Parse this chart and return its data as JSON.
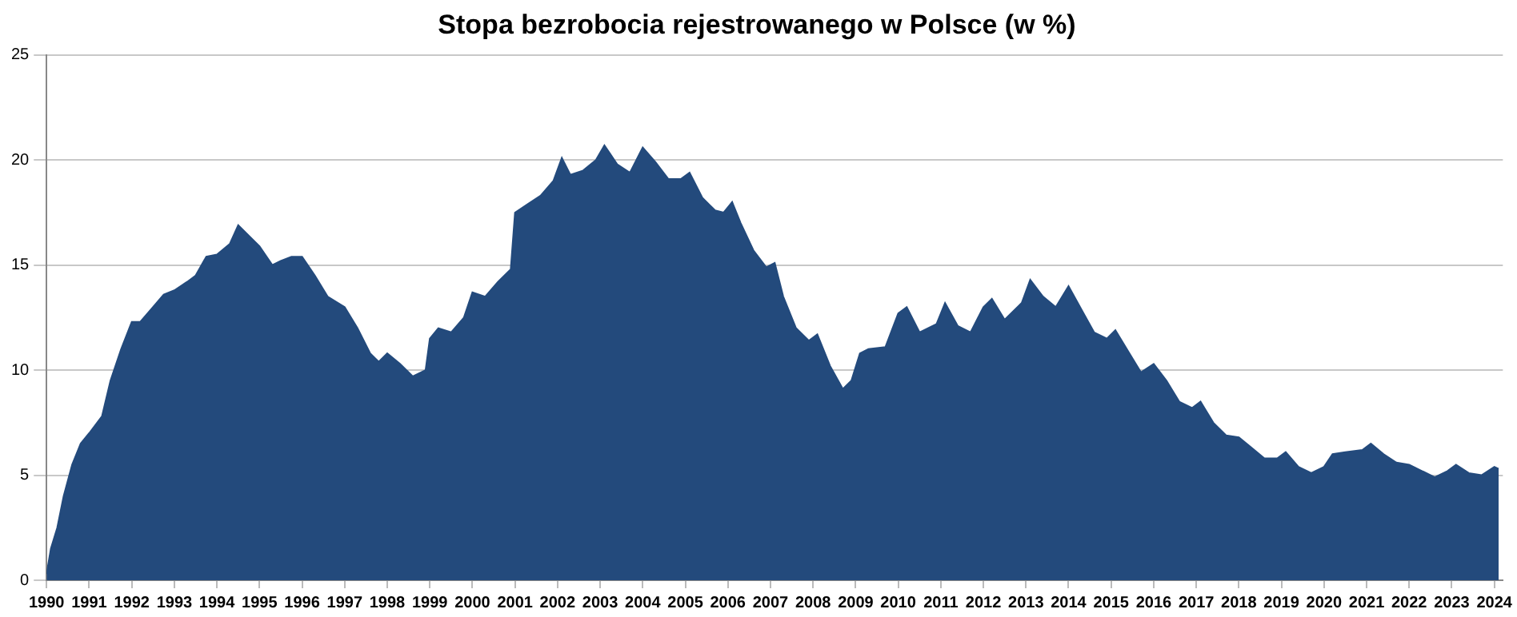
{
  "chart_data": {
    "type": "area",
    "title": "Stopa bezrobocia rejestrowanego w Polsce (w %)",
    "x": [
      1990.0,
      1990.1,
      1990.25,
      1990.4,
      1990.6,
      1990.8,
      1991.0,
      1991.3,
      1991.5,
      1991.75,
      1992.0,
      1992.2,
      1992.5,
      1992.75,
      1993.0,
      1993.3,
      1993.5,
      1993.75,
      1994.0,
      1994.3,
      1994.5,
      1994.75,
      1995.0,
      1995.3,
      1995.5,
      1995.75,
      1996.0,
      1996.3,
      1996.6,
      1997.0,
      1997.3,
      1997.6,
      1997.8,
      1998.0,
      1998.3,
      1998.6,
      1998.9,
      1999.0,
      1999.2,
      1999.5,
      1999.8,
      2000.0,
      2000.3,
      2000.6,
      2000.9,
      2001.0,
      2001.3,
      2001.6,
      2001.9,
      2002.1,
      2002.3,
      2002.6,
      2002.9,
      2003.1,
      2003.4,
      2003.7,
      2004.0,
      2004.3,
      2004.6,
      2004.9,
      2005.1,
      2005.4,
      2005.7,
      2005.9,
      2006.1,
      2006.3,
      2006.6,
      2006.9,
      2007.1,
      2007.3,
      2007.6,
      2007.9,
      2008.1,
      2008.4,
      2008.7,
      2008.9,
      2009.1,
      2009.3,
      2009.7,
      2010.0,
      2010.2,
      2010.5,
      2010.9,
      2011.1,
      2011.4,
      2011.7,
      2012.0,
      2012.2,
      2012.5,
      2012.9,
      2013.1,
      2013.4,
      2013.7,
      2014.0,
      2014.3,
      2014.6,
      2014.9,
      2015.1,
      2015.4,
      2015.7,
      2016.0,
      2016.3,
      2016.6,
      2016.9,
      2017.1,
      2017.4,
      2017.7,
      2018.0,
      2018.3,
      2018.6,
      2018.9,
      2019.1,
      2019.4,
      2019.7,
      2020.0,
      2020.2,
      2020.5,
      2020.9,
      2021.1,
      2021.4,
      2021.7,
      2022.0,
      2022.3,
      2022.6,
      2022.9,
      2023.1,
      2023.4,
      2023.7,
      2024.0,
      2024.1
    ],
    "series": [
      {
        "color": "#234a7c",
        "values": [
          0.3,
          1.5,
          2.5,
          4,
          5.5,
          6.5,
          7,
          7.8,
          9.5,
          11,
          12.3,
          12.3,
          13,
          13.6,
          13.8,
          14.2,
          14.5,
          15.4,
          15.5,
          16,
          16.9,
          16.4,
          15.9,
          15,
          15.2,
          15.4,
          15.4,
          14.5,
          13.5,
          13,
          12,
          10.8,
          10.4,
          10.8,
          10.3,
          9.7,
          10,
          11.5,
          12,
          11.8,
          12.5,
          13.7,
          13.5,
          14.2,
          14.8,
          17.5,
          17.9,
          18.3,
          19,
          20.1,
          19.3,
          19.5,
          20,
          20.7,
          19.8,
          19.4,
          20.6,
          19.9,
          19.1,
          19.1,
          19.4,
          18.2,
          17.6,
          17.5,
          18,
          17,
          15.7,
          14.9,
          15.1,
          13.5,
          12,
          11.4,
          11.7,
          10.2,
          9.1,
          9.5,
          10.8,
          11,
          11.1,
          12.7,
          13,
          11.8,
          12.2,
          13.2,
          12.1,
          11.8,
          13,
          13.4,
          12.4,
          13.2,
          14.3,
          13.5,
          13,
          14,
          12.9,
          11.8,
          11.5,
          11.9,
          10.9,
          9.9,
          10.3,
          9.5,
          8.5,
          8.2,
          8.5,
          7.5,
          6.9,
          6.8,
          6.3,
          5.8,
          5.8,
          6.1,
          5.4,
          5.1,
          5.4,
          6,
          6.1,
          6.2,
          6.5,
          6,
          5.6,
          5.5,
          5.2,
          4.9,
          5.2,
          5.5,
          5.1,
          5,
          5.4,
          5.3
        ]
      }
    ],
    "xlim": [
      1990,
      2024.2
    ],
    "xticks": [
      1990,
      1991,
      1992,
      1993,
      1994,
      1995,
      1996,
      1997,
      1998,
      1999,
      2000,
      2001,
      2002,
      2003,
      2004,
      2005,
      2006,
      2007,
      2008,
      2009,
      2010,
      2011,
      2012,
      2013,
      2014,
      2015,
      2016,
      2017,
      2018,
      2019,
      2020,
      2021,
      2022,
      2023,
      2024
    ],
    "ylim": [
      0,
      25
    ],
    "yticks": [
      0,
      5,
      10,
      15,
      20,
      25
    ],
    "grid": "y"
  }
}
